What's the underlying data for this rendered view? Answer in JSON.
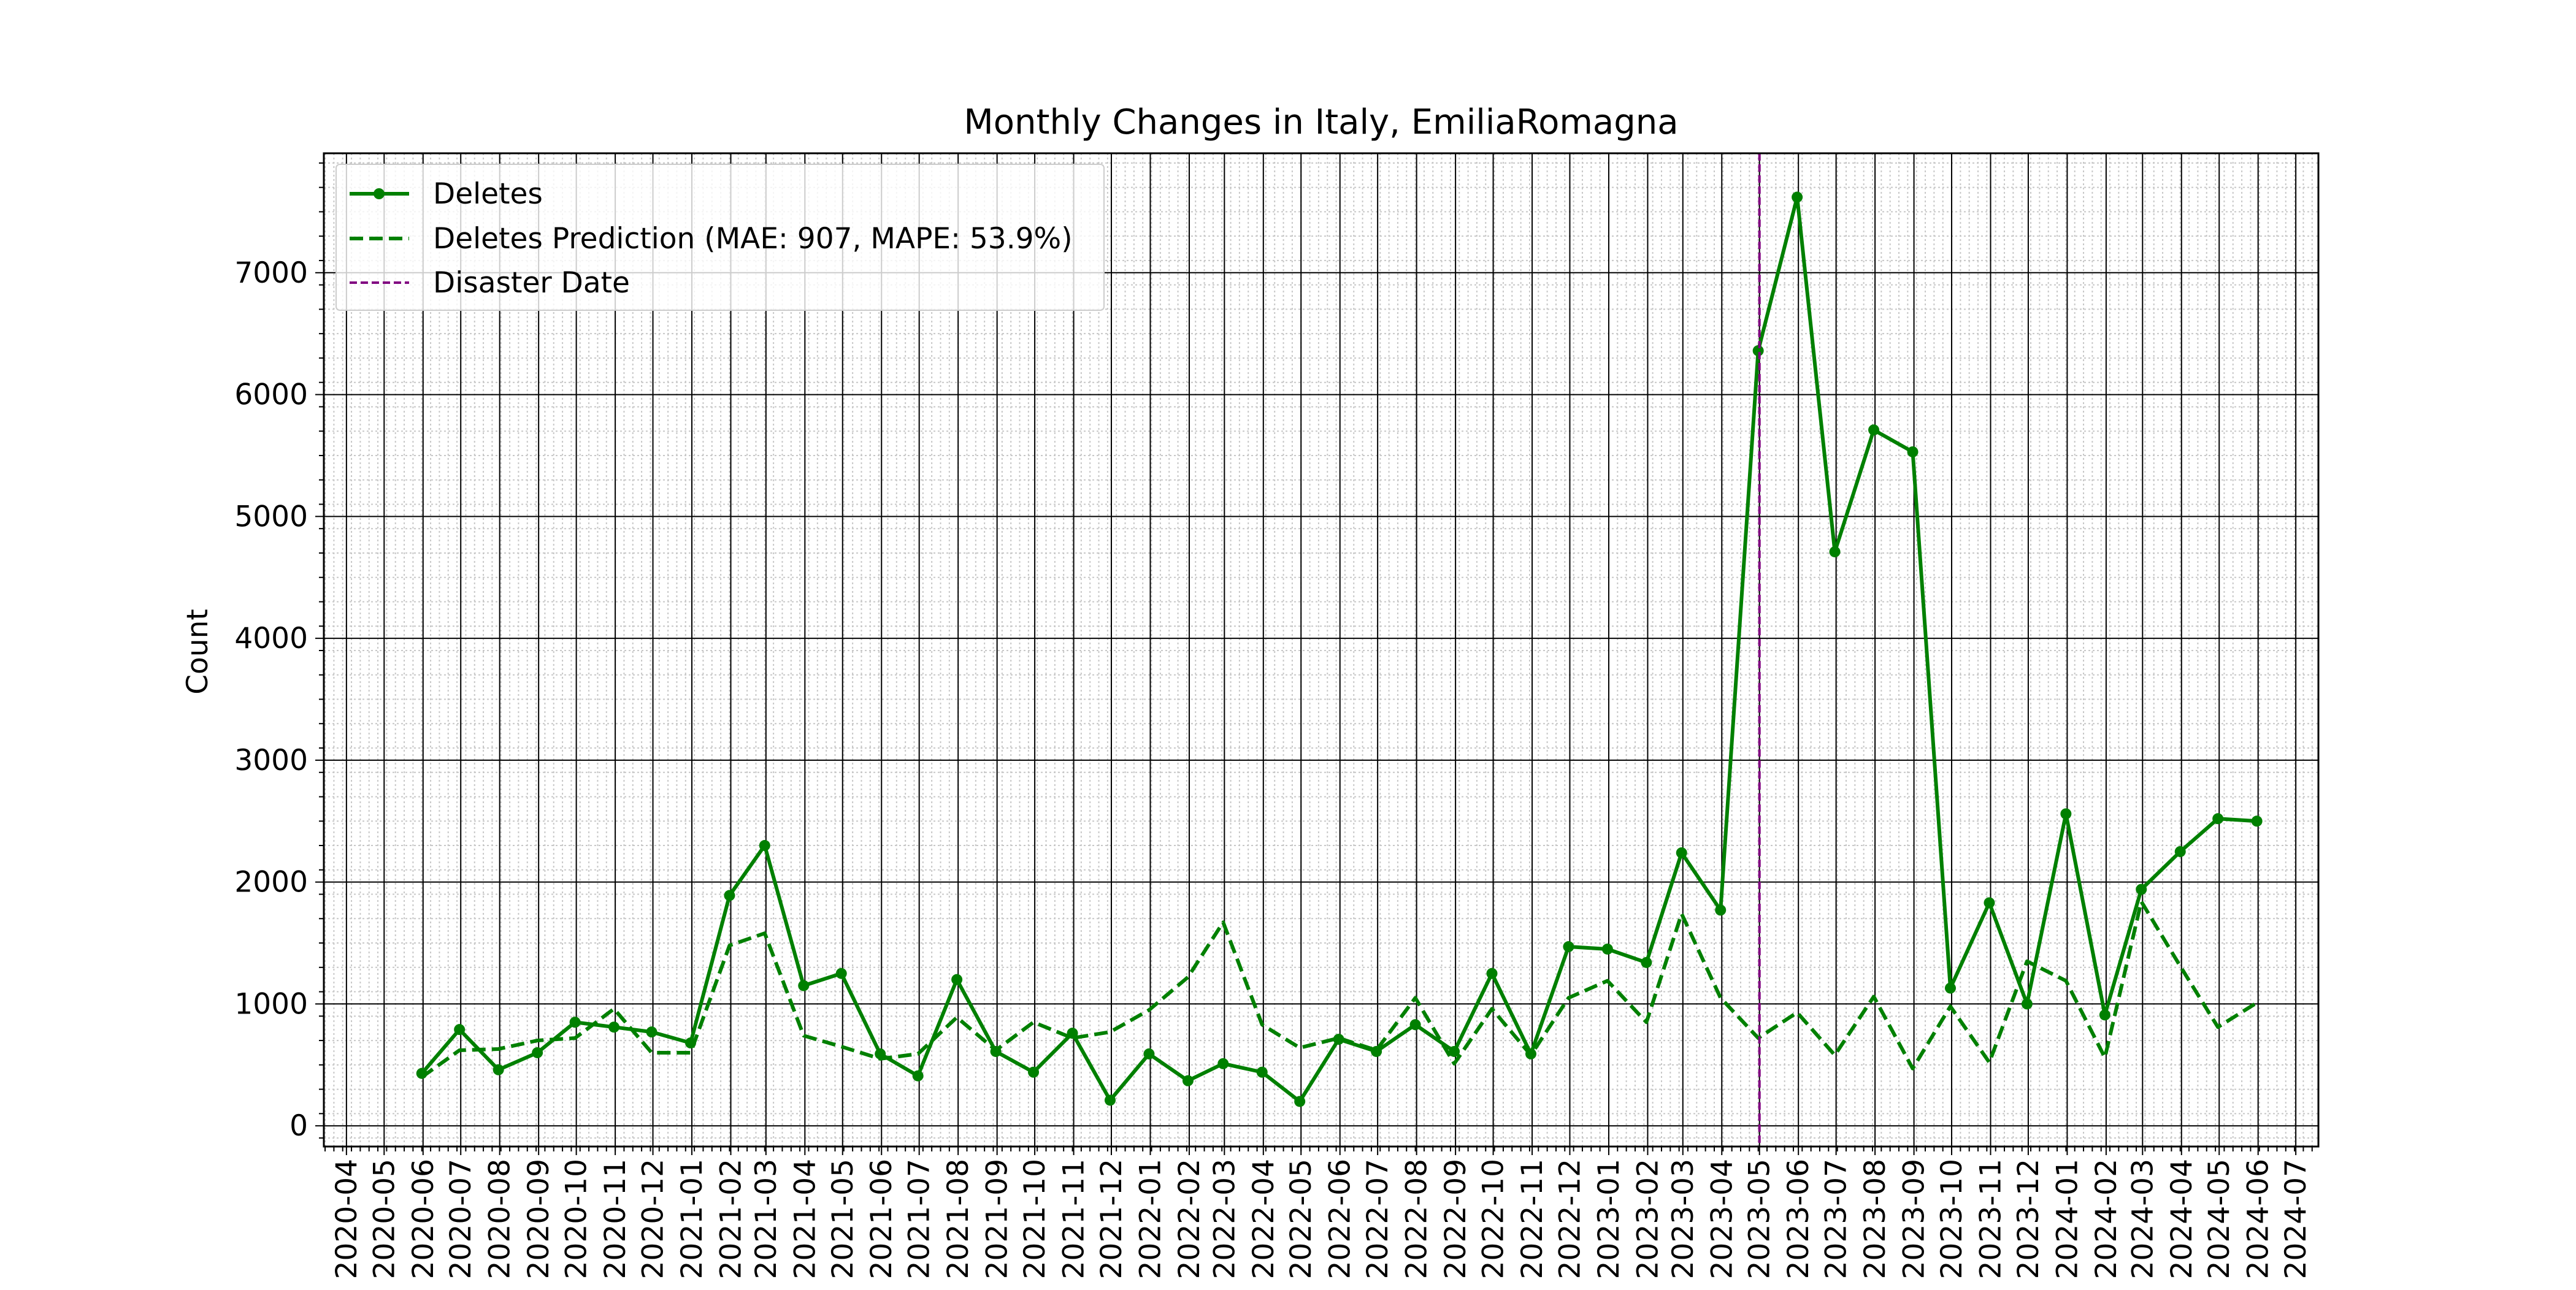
{
  "chart_data": {
    "type": "line",
    "title": "Monthly Changes in Italy, EmiliaRomagna",
    "xlabel": "",
    "ylabel": "Count",
    "ylim": [
      -170,
      7980
    ],
    "yticks": [
      0,
      1000,
      2000,
      3000,
      4000,
      5000,
      6000,
      7000
    ],
    "x_tick_labels": [
      "2020-04",
      "2020-05",
      "2020-06",
      "2020-07",
      "2020-08",
      "2020-09",
      "2020-10",
      "2020-11",
      "2020-12",
      "2021-01",
      "2021-02",
      "2021-03",
      "2021-04",
      "2021-05",
      "2021-06",
      "2021-07",
      "2021-08",
      "2021-09",
      "2021-10",
      "2021-11",
      "2021-12",
      "2022-01",
      "2022-02",
      "2022-03",
      "2022-04",
      "2022-05",
      "2022-06",
      "2022-07",
      "2022-08",
      "2022-09",
      "2022-10",
      "2022-11",
      "2022-12",
      "2023-01",
      "2023-02",
      "2023-03",
      "2023-04",
      "2023-05",
      "2023-06",
      "2023-07",
      "2023-08",
      "2023-09",
      "2023-10",
      "2023-11",
      "2023-12",
      "2024-01",
      "2024-02",
      "2024-03",
      "2024-04",
      "2024-05",
      "2024-06",
      "2024-07"
    ],
    "x": [
      "2020-05-31",
      "2020-06-30",
      "2020-07-31",
      "2020-08-31",
      "2020-09-30",
      "2020-10-31",
      "2020-11-30",
      "2020-12-31",
      "2021-01-31",
      "2021-02-28",
      "2021-03-31",
      "2021-04-30",
      "2021-05-31",
      "2021-06-30",
      "2021-07-31",
      "2021-08-31",
      "2021-09-30",
      "2021-10-31",
      "2021-11-30",
      "2021-12-31",
      "2022-01-31",
      "2022-02-28",
      "2022-03-31",
      "2022-04-30",
      "2022-05-31",
      "2022-06-30",
      "2022-07-31",
      "2022-08-31",
      "2022-09-30",
      "2022-10-31",
      "2022-11-30",
      "2022-12-31",
      "2023-01-31",
      "2023-02-28",
      "2023-03-31",
      "2023-04-30",
      "2023-05-31",
      "2023-06-30",
      "2023-07-31",
      "2023-08-31",
      "2023-09-30",
      "2023-10-31",
      "2023-11-30",
      "2023-12-31",
      "2024-01-31",
      "2024-02-29",
      "2024-03-31",
      "2024-04-30",
      "2024-05-31"
    ],
    "series": [
      {
        "name": "Deletes",
        "color": "#008000",
        "style": "solid-markers",
        "values": [
          430,
          790,
          460,
          600,
          850,
          810,
          770,
          680,
          1890,
          2300,
          1150,
          1250,
          590,
          410,
          1200,
          610,
          440,
          760,
          210,
          590,
          370,
          510,
          440,
          200,
          710,
          610,
          830,
          610,
          1250,
          590,
          1470,
          1450,
          1340,
          2240,
          1770,
          6360,
          7620,
          4710,
          5710,
          5530,
          1130,
          1830,
          1000,
          2560,
          910,
          1940,
          2250,
          2520,
          2500
        ]
      },
      {
        "name": "Deletes Prediction (MAE: 907, MAPE: 53.9%)",
        "color": "#008000",
        "style": "dashed",
        "values": [
          400,
          620,
          630,
          700,
          720,
          960,
          600,
          600,
          1480,
          1580,
          740,
          650,
          550,
          590,
          890,
          620,
          850,
          720,
          770,
          950,
          1220,
          1670,
          830,
          640,
          720,
          620,
          1050,
          510,
          960,
          580,
          1050,
          1190,
          850,
          1740,
          1050,
          720,
          930,
          580,
          1060,
          470,
          980,
          520,
          1350,
          1190,
          560,
          1840,
          1310,
          810,
          1010
        ]
      }
    ],
    "disaster": {
      "name": "Disaster Date",
      "x": "2023-05-01",
      "color": "#800080"
    },
    "legend_position": "top-left",
    "grid": true
  }
}
